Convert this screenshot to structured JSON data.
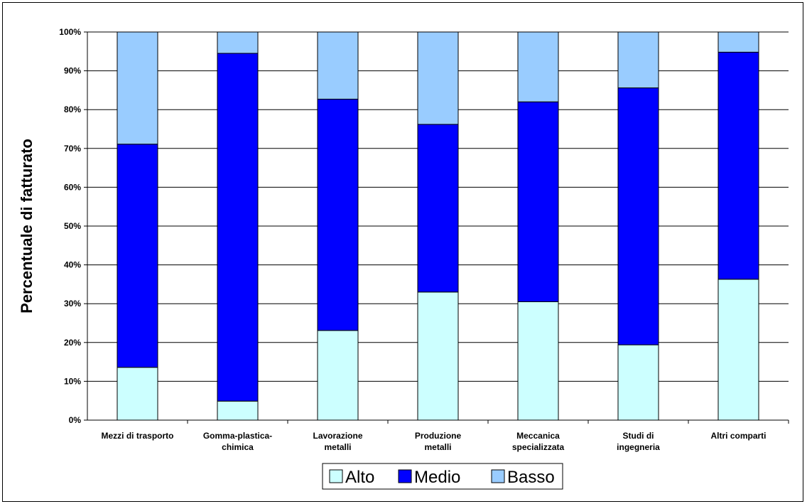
{
  "chart_data": {
    "type": "bar",
    "stacked": true,
    "percent": true,
    "categories": [
      [
        "Mezzi di trasporto"
      ],
      [
        "Gomma-plastica-",
        "chimica"
      ],
      [
        "Lavorazione",
        "metalli"
      ],
      [
        "Produzione",
        "metalli"
      ],
      [
        "Meccanica",
        "specializzata"
      ],
      [
        "Studi di",
        "ingegneria"
      ],
      [
        "Altri comparti"
      ]
    ],
    "series": [
      {
        "name": "Alto",
        "color": "#ccffff",
        "values": [
          13.6,
          4.9,
          23.1,
          33.0,
          30.5,
          19.4,
          36.3
        ]
      },
      {
        "name": "Medio",
        "color": "#0000ff",
        "values": [
          57.5,
          89.6,
          59.6,
          43.2,
          51.5,
          66.2,
          58.5
        ]
      },
      {
        "name": "Basso",
        "color": "#99ccff",
        "values": [
          28.9,
          5.5,
          17.3,
          23.8,
          18.0,
          14.4,
          5.2
        ]
      }
    ],
    "ylabel": "Percentuale di fatturato",
    "xlabel": "",
    "ylim": [
      0,
      100
    ],
    "yticks": [
      "0%",
      "10%",
      "20%",
      "30%",
      "40%",
      "50%",
      "60%",
      "70%",
      "80%",
      "90%",
      "100%"
    ],
    "grid": true,
    "legend_position": "bottom"
  }
}
